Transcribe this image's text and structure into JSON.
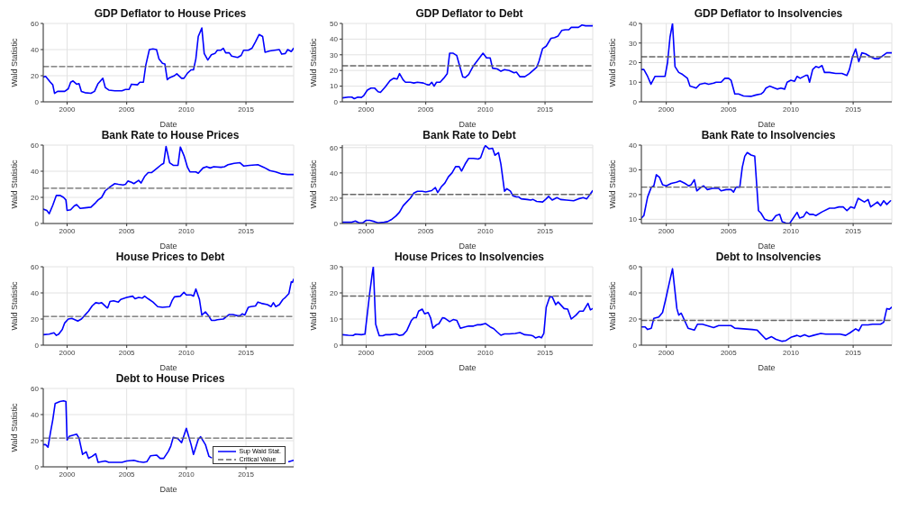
{
  "chart_data": [
    {
      "type": "line",
      "title": "GDP Deflator to House Prices",
      "xlabel": "Date",
      "ylabel": "Wald Statistic",
      "xlim": [
        1998,
        2019
      ],
      "xticks": [
        2000,
        2005,
        2010,
        2015
      ],
      "ylim": [
        0,
        60
      ],
      "yticks": [
        0,
        20,
        40,
        60
      ],
      "grid": true,
      "series": [
        {
          "color": "#0000ff",
          "x": [
            1998.0,
            1998.2,
            1998.6,
            1998.8,
            1998.95,
            1999.2,
            1999.6,
            1999.8,
            2000.1,
            2000.3,
            2000.5,
            2000.8,
            2001.0,
            2001.2,
            2001.5,
            2002.0,
            2002.3,
            2002.6,
            2003.0,
            2003.2,
            2003.5,
            2004.0,
            2004.6,
            2004.9,
            2005.2,
            2005.4,
            2005.9,
            2006.1,
            2006.4,
            2006.6,
            2006.9,
            2007.2,
            2007.5,
            2007.7,
            2008.0,
            2008.2,
            2008.4,
            2008.6,
            2009.0,
            2009.2,
            2009.6,
            2009.8,
            2010.1,
            2010.4,
            2010.6,
            2010.8,
            2011.0,
            2011.3,
            2011.5,
            2011.8,
            2012.1,
            2012.4,
            2012.6,
            2012.9,
            2013.1,
            2013.3,
            2013.6,
            2013.8,
            2014.3,
            2014.6,
            2014.8,
            2015.2,
            2015.5,
            2015.8,
            2016.1,
            2016.4,
            2016.6,
            2017.0,
            2017.4,
            2017.8,
            2018.0,
            2018.3,
            2018.5,
            2018.8,
            2019.0
          ],
          "values": [
            19,
            19.5,
            15,
            13,
            6.5,
            8,
            8,
            8,
            10,
            15,
            16,
            13.5,
            14,
            8,
            7,
            6.5,
            8,
            14,
            18,
            11,
            9,
            8.5,
            8.5,
            9.5,
            9.5,
            13.5,
            13,
            15,
            15,
            28,
            40,
            40.5,
            40,
            33,
            29.5,
            29,
            17,
            18.5,
            20,
            21.5,
            18,
            18,
            22,
            24.5,
            24.5,
            33,
            50,
            56.5,
            37,
            32,
            36,
            37,
            39.5,
            39.5,
            41,
            37.5,
            37.5,
            35,
            34,
            35.5,
            39.5,
            39.5,
            41,
            46,
            51.5,
            50,
            38,
            39,
            39.5,
            40,
            36.5,
            37,
            40,
            38.5,
            41
          ]
        },
        {
          "color": "#666666",
          "line_style": "dashed",
          "x": [
            1998,
            2019
          ],
          "values": [
            27,
            27
          ]
        }
      ]
    },
    {
      "type": "line",
      "title": "GDP Deflator to Debt",
      "xlabel": "Date",
      "ylabel": "Wald Statistic",
      "xlim": [
        1998,
        2019
      ],
      "xticks": [
        2000,
        2005,
        2010,
        2015
      ],
      "ylim": [
        0,
        50
      ],
      "yticks": [
        0,
        10,
        20,
        30,
        40,
        50
      ],
      "grid": true,
      "series": [
        {
          "color": "#0000ff",
          "x": [
            1998.0,
            1998.5,
            1998.8,
            1999.0,
            1999.3,
            1999.6,
            1999.8,
            2000.1,
            2000.4,
            2000.7,
            2001.0,
            2001.2,
            2001.6,
            2002.0,
            2002.3,
            2002.6,
            2002.8,
            2003.1,
            2003.3,
            2003.7,
            2004.0,
            2004.3,
            2004.8,
            2005.1,
            2005.3,
            2005.5,
            2005.7,
            2005.9,
            2006.2,
            2006.5,
            2006.8,
            2007.0,
            2007.3,
            2007.6,
            2007.8,
            2008.1,
            2008.3,
            2008.6,
            2009.0,
            2009.4,
            2009.8,
            2010.1,
            2010.4,
            2010.6,
            2011.0,
            2011.3,
            2011.6,
            2012.0,
            2012.4,
            2012.6,
            2012.9,
            2013.3,
            2013.7,
            2014.0,
            2014.3,
            2014.5,
            2014.8,
            2015.1,
            2015.5,
            2015.8,
            2016.1,
            2016.4,
            2016.7,
            2017.0,
            2017.2,
            2017.8,
            2018.1,
            2018.4,
            2019.0
          ],
          "values": [
            2.5,
            3,
            3,
            2,
            3,
            2.8,
            4,
            7.5,
            8.8,
            8.8,
            6.5,
            6,
            9.5,
            13.5,
            15,
            14.5,
            18,
            14,
            12.5,
            12.5,
            12,
            12.5,
            12,
            11,
            10.8,
            12.5,
            10,
            12.5,
            12.5,
            15,
            18,
            31,
            31,
            29.5,
            24,
            16,
            15.5,
            17.5,
            23,
            27,
            31,
            28,
            28,
            21.5,
            21,
            19.5,
            20.5,
            20,
            18.5,
            19,
            16,
            16,
            18,
            20,
            22,
            26,
            34,
            35.5,
            40.5,
            41,
            42,
            45.5,
            46,
            46,
            47.5,
            47.5,
            49,
            48.5,
            48.5
          ]
        },
        {
          "color": "#666666",
          "line_style": "dashed",
          "x": [
            1998,
            2019
          ],
          "values": [
            23,
            23
          ]
        }
      ]
    },
    {
      "type": "line",
      "title": "GDP Deflator to Insolvencies",
      "xlabel": "Date",
      "ylabel": "Wald Statistic",
      "xlim": [
        1998,
        2018.1
      ],
      "xticks": [
        2000,
        2005,
        2010,
        2015
      ],
      "ylim": [
        0,
        40
      ],
      "yticks": [
        0,
        10,
        20,
        30,
        40
      ],
      "grid": true,
      "series": [
        {
          "color": "#0000ff",
          "x": [
            1998.0,
            1998.2,
            1998.5,
            1998.77,
            1999.1,
            1999.5,
            1999.9,
            2000.1,
            2000.3,
            2000.5,
            2000.7,
            2001.0,
            2001.3,
            2001.7,
            2001.9,
            2002.2,
            2002.4,
            2002.7,
            2003.1,
            2003.4,
            2003.8,
            2004.0,
            2004.4,
            2004.7,
            2005.0,
            2005.2,
            2005.5,
            2005.8,
            2006.2,
            2006.8,
            2007.2,
            2007.6,
            2007.8,
            2008.0,
            2008.3,
            2008.7,
            2008.9,
            2009.2,
            2009.5,
            2009.7,
            2010.0,
            2010.3,
            2010.5,
            2010.75,
            2011.2,
            2011.35,
            2011.5,
            2011.75,
            2012.0,
            2012.25,
            2012.5,
            2012.7,
            2013.1,
            2013.6,
            2014.1,
            2014.5,
            2014.7,
            2014.95,
            2015.2,
            2015.45,
            2015.7,
            2016.0,
            2016.4,
            2016.75,
            2017.05,
            2017.7,
            2018.1
          ],
          "values": [
            16.5,
            16.5,
            13,
            9,
            13,
            13,
            13,
            20,
            33,
            40,
            18,
            15,
            14,
            12,
            8,
            7.5,
            7,
            9,
            9.5,
            9,
            9.5,
            10,
            10,
            12,
            12,
            11,
            4,
            4,
            3,
            2.8,
            3.5,
            4,
            5,
            7,
            8,
            7,
            6.5,
            7,
            6.5,
            10,
            11,
            10.5,
            13,
            12,
            13.5,
            13.5,
            10,
            16.5,
            18,
            17.5,
            18.5,
            15,
            15,
            14.5,
            14.5,
            13.5,
            16.5,
            23,
            27,
            20.5,
            25,
            24.5,
            23,
            22,
            22,
            25,
            25
          ]
        },
        {
          "color": "#666666",
          "line_style": "dashed",
          "x": [
            1998,
            2018.1
          ],
          "values": [
            23,
            23
          ]
        }
      ]
    },
    {
      "type": "line",
      "title": "Bank Rate to House Prices",
      "xlabel": "Date",
      "ylabel": "Wald Statistic",
      "xlim": [
        1998,
        2019
      ],
      "xticks": [
        2000,
        2005,
        2010,
        2015
      ],
      "ylim": [
        0,
        60
      ],
      "yticks": [
        0,
        20,
        40,
        60
      ],
      "grid": true,
      "series": [
        {
          "color": "#0000ff",
          "x": [
            1998.0,
            1998.3,
            1998.5,
            1998.8,
            1999.1,
            1999.4,
            1999.7,
            1999.9,
            2000.0,
            2000.3,
            2000.6,
            2000.8,
            2001.1,
            2001.5,
            2002.0,
            2002.4,
            2002.6,
            2002.9,
            2003.2,
            2003.6,
            2004.0,
            2004.3,
            2004.7,
            2004.9,
            2005.1,
            2005.4,
            2005.6,
            2006.0,
            2006.2,
            2006.5,
            2006.8,
            2007.1,
            2007.5,
            2007.9,
            2008.1,
            2008.3,
            2008.6,
            2008.9,
            2009.3,
            2009.5,
            2009.8,
            2010.1,
            2010.3,
            2010.8,
            2011.0,
            2011.4,
            2011.7,
            2012.0,
            2012.3,
            2012.9,
            2013.2,
            2013.5,
            2014.0,
            2014.5,
            2014.8,
            2015.3,
            2016.0,
            2016.5,
            2017.0,
            2017.5,
            2018.0,
            2018.5,
            2019.0
          ],
          "values": [
            11,
            10,
            7.5,
            14,
            21.5,
            21.5,
            20,
            18,
            10,
            10.5,
            13.5,
            14.5,
            11.5,
            12,
            12.5,
            16,
            18,
            20,
            25,
            28,
            30.5,
            30,
            29.5,
            30,
            32.5,
            31.5,
            30.5,
            33,
            31,
            36,
            39,
            39,
            42,
            45,
            46,
            59,
            46.5,
            44.5,
            44.5,
            58.5,
            52,
            43,
            39.5,
            39.5,
            38.5,
            42.5,
            43.5,
            42.5,
            43.5,
            43,
            43.5,
            45,
            46,
            46.5,
            44,
            44.5,
            45,
            43,
            40.5,
            39.5,
            38,
            37.5,
            37.5
          ]
        },
        {
          "color": "#666666",
          "line_style": "dashed",
          "x": [
            1998,
            2019
          ],
          "values": [
            27,
            27
          ]
        }
      ]
    },
    {
      "type": "line",
      "title": "Bank Rate to Debt",
      "xlabel": "Date",
      "ylabel": "Wald Statistic",
      "xlim": [
        1998,
        2019
      ],
      "xticks": [
        2000,
        2005,
        2010,
        2015
      ],
      "ylim": [
        0,
        62
      ],
      "yticks": [
        0,
        20,
        40,
        60
      ],
      "grid": true,
      "series": [
        {
          "color": "#0000ff",
          "x": [
            1998.0,
            1998.8,
            1999.1,
            1999.4,
            1999.7,
            2000.0,
            2000.3,
            2000.7,
            2001.0,
            2001.5,
            2001.8,
            2002.1,
            2002.5,
            2002.8,
            2003.1,
            2003.4,
            2003.7,
            2004.0,
            2004.3,
            2004.7,
            2005.0,
            2005.5,
            2005.8,
            2006.0,
            2006.3,
            2006.6,
            2006.9,
            2007.2,
            2007.5,
            2007.8,
            2008.0,
            2008.3,
            2008.6,
            2009.0,
            2009.4,
            2009.6,
            2009.9,
            2010.0,
            2010.3,
            2010.6,
            2010.8,
            2011.1,
            2011.3,
            2011.6,
            2011.8,
            2012.1,
            2012.3,
            2012.6,
            2012.8,
            2013.0,
            2013.5,
            2013.8,
            2014.0,
            2014.3,
            2014.8,
            2015.1,
            2015.3,
            2015.6,
            2016.0,
            2016.3,
            2016.8,
            2017.4,
            2017.8,
            2018.2,
            2018.5,
            2019.0
          ],
          "values": [
            1,
            1,
            2,
            0.5,
            0.5,
            2.5,
            2.5,
            1.5,
            0.5,
            1,
            1.5,
            3,
            6,
            9,
            14,
            17,
            20,
            24,
            25.5,
            25.5,
            25,
            26,
            28.5,
            24.5,
            29,
            32,
            37,
            40,
            45,
            45,
            41.5,
            47,
            51.5,
            51.5,
            51,
            52,
            60,
            61.5,
            59,
            59.5,
            54,
            56,
            47,
            25.5,
            27.5,
            25.5,
            22,
            21,
            21,
            19.5,
            19,
            18.5,
            19,
            17.5,
            17,
            19.5,
            21.5,
            18.5,
            20.5,
            19,
            18.5,
            18,
            19.5,
            20.5,
            19.5,
            26
          ]
        },
        {
          "color": "#666666",
          "line_style": "dashed",
          "x": [
            1998,
            2019
          ],
          "values": [
            23,
            23
          ]
        }
      ]
    },
    {
      "type": "line",
      "title": "Bank Rate to Insolvencies",
      "xlabel": "Date",
      "ylabel": "Wald Statistic",
      "xlim": [
        1998,
        2018.1
      ],
      "xticks": [
        2000,
        2005,
        2010,
        2015
      ],
      "ylim": [
        8.3,
        40
      ],
      "yticks": [
        10,
        20,
        30,
        40
      ],
      "grid": true,
      "series": [
        {
          "color": "#0000ff",
          "x": [
            1998.0,
            1998.2,
            1998.5,
            1998.8,
            1999.0,
            1999.2,
            1999.45,
            1999.7,
            2000.0,
            2000.4,
            2000.8,
            2001.1,
            2001.5,
            2001.8,
            2002.0,
            2002.25,
            2002.45,
            2002.8,
            2003.0,
            2003.3,
            2003.7,
            2004.2,
            2004.4,
            2004.8,
            2005.2,
            2005.4,
            2005.6,
            2005.9,
            2006.1,
            2006.3,
            2006.5,
            2006.8,
            2007.1,
            2007.4,
            2007.6,
            2007.9,
            2008.2,
            2008.5,
            2008.8,
            2009.1,
            2009.3,
            2009.6,
            2009.9,
            2010.5,
            2010.7,
            2011.0,
            2011.25,
            2011.5,
            2011.8,
            2012.0,
            2012.5,
            2013.1,
            2013.5,
            2013.85,
            2014.2,
            2014.5,
            2014.8,
            2015.1,
            2015.4,
            2015.9,
            2016.2,
            2016.4,
            2016.95,
            2017.2,
            2017.45,
            2017.7,
            2018.0
          ],
          "values": [
            10.5,
            11.5,
            19,
            23,
            23.5,
            28,
            27,
            24,
            23.5,
            24.5,
            25,
            25.5,
            24.5,
            23.5,
            24,
            26,
            21.5,
            23,
            23.5,
            22,
            22.5,
            22.5,
            21.5,
            22,
            22,
            21,
            23,
            23,
            31,
            35.5,
            37,
            36,
            35.5,
            13.5,
            12.5,
            10,
            9.5,
            9.5,
            11.5,
            12,
            9,
            8.5,
            8.3,
            12.8,
            10.5,
            11,
            13,
            12,
            12,
            11.5,
            13,
            14.5,
            14.5,
            15,
            15,
            13.5,
            15,
            14.5,
            18.5,
            17,
            18,
            15,
            17,
            15.5,
            17.5,
            16,
            17.5
          ]
        },
        {
          "color": "#666666",
          "line_style": "dashed",
          "x": [
            1998,
            2018.1
          ],
          "values": [
            23,
            23
          ]
        }
      ]
    },
    {
      "type": "line",
      "title": "House Prices to Debt",
      "xlabel": "Date",
      "ylabel": "Wald Statistic",
      "xlim": [
        1998,
        2019
      ],
      "xticks": [
        2000,
        2005,
        2010,
        2015
      ],
      "ylim": [
        0,
        60
      ],
      "yticks": [
        0,
        20,
        40,
        60
      ],
      "grid": true,
      "series": [
        {
          "color": "#0000ff",
          "x": [
            1998.0,
            1998.5,
            1998.9,
            1999.1,
            1999.3,
            1999.6,
            1999.8,
            2000.1,
            2000.4,
            2000.9,
            2001.2,
            2001.5,
            2001.8,
            2002.1,
            2002.4,
            2002.7,
            2002.9,
            2003.3,
            2003.4,
            2003.6,
            2003.9,
            2004.3,
            2004.5,
            2005.0,
            2005.5,
            2005.7,
            2006.0,
            2006.3,
            2006.5,
            2006.8,
            2007.2,
            2007.6,
            2008.0,
            2008.6,
            2008.8,
            2009.0,
            2009.5,
            2009.8,
            2010.0,
            2010.4,
            2010.6,
            2010.8,
            2011.1,
            2011.3,
            2011.6,
            2011.9,
            2012.1,
            2012.4,
            2012.6,
            2013.1,
            2013.6,
            2013.9,
            2014.3,
            2014.5,
            2014.7,
            2014.9,
            2015.2,
            2015.4,
            2015.8,
            2016.0,
            2016.3,
            2016.8,
            2017.1,
            2017.3,
            2017.5,
            2017.8,
            2018.1,
            2018.3,
            2018.6,
            2018.8,
            2018.9,
            2019.0
          ],
          "values": [
            8,
            8.5,
            9.5,
            7.5,
            8.5,
            12,
            17,
            20,
            20.5,
            18.5,
            20,
            23,
            26,
            30,
            32.5,
            32,
            32.5,
            29,
            28.5,
            33.5,
            34,
            33,
            35,
            36.5,
            37.5,
            35.5,
            36.5,
            36,
            37.5,
            35.5,
            33,
            29.5,
            29,
            29.5,
            34,
            37,
            37.5,
            40.5,
            38.5,
            38.5,
            37.5,
            43,
            35,
            23,
            25.5,
            22,
            19,
            19,
            19.5,
            20,
            23.5,
            23.5,
            22.5,
            22.5,
            24,
            23,
            29,
            29.5,
            30,
            33,
            32,
            31,
            29.5,
            32.5,
            29.5,
            31,
            35,
            36.5,
            39.5,
            48.5,
            48,
            50.5
          ]
        },
        {
          "color": "#666666",
          "line_style": "dashed",
          "x": [
            1998,
            2019
          ],
          "values": [
            22,
            22
          ]
        }
      ]
    },
    {
      "type": "line",
      "title": "House Prices to Insolvencies",
      "xlabel": "Date",
      "ylabel": "Wald Statistic",
      "xlim": [
        1998,
        2019
      ],
      "xticks": [
        2000,
        2005,
        2010,
        2015
      ],
      "ylim": [
        0,
        30
      ],
      "yticks": [
        0,
        10,
        20,
        30
      ],
      "grid": true,
      "series": [
        {
          "color": "#0000ff",
          "x": [
            1998.0,
            1998.5,
            1998.9,
            1999.1,
            1999.6,
            1999.9,
            2000.1,
            2000.3,
            2000.5,
            2000.6,
            2000.8,
            2001.0,
            2001.1,
            2001.4,
            2001.6,
            2002.0,
            2002.5,
            2002.8,
            2003.1,
            2003.4,
            2003.8,
            2004.0,
            2004.2,
            2004.4,
            2004.7,
            2004.9,
            2005.2,
            2005.4,
            2005.6,
            2005.9,
            2006.1,
            2006.4,
            2006.6,
            2007.0,
            2007.3,
            2007.6,
            2007.9,
            2008.3,
            2008.6,
            2009.0,
            2009.3,
            2009.6,
            2010.0,
            2010.4,
            2010.7,
            2011.0,
            2011.3,
            2011.6,
            2012.0,
            2012.5,
            2012.9,
            2013.3,
            2013.8,
            2014.0,
            2014.2,
            2014.5,
            2014.7,
            2014.9,
            2015.1,
            2015.4,
            2015.6,
            2015.9,
            2016.1,
            2016.6,
            2016.9,
            2017.2,
            2017.6,
            2017.9,
            2018.2,
            2018.6,
            2018.8,
            2019.0
          ],
          "values": [
            4,
            3.8,
            3.7,
            4.2,
            4,
            4.2,
            12,
            20,
            27,
            30,
            8,
            5,
            3.6,
            3.6,
            4,
            4,
            4.3,
            3.7,
            4,
            5.5,
            9.5,
            10.5,
            10.5,
            13,
            13.8,
            12,
            12.5,
            10.5,
            6.5,
            7.8,
            8.2,
            10.5,
            10.3,
            9,
            9.8,
            9.5,
            6.5,
            7,
            7.3,
            7.3,
            7.8,
            7.8,
            8.3,
            7,
            6.3,
            5,
            3.8,
            4.3,
            4.3,
            4.5,
            4.8,
            4,
            3.8,
            3.5,
            2.8,
            3.3,
            2.8,
            4.5,
            14.5,
            18.5,
            18.5,
            15.5,
            16.5,
            14,
            13.8,
            10,
            11.5,
            13,
            13,
            16,
            13.5,
            14
          ]
        },
        {
          "color": "#666666",
          "line_style": "dashed",
          "x": [
            1998,
            2019
          ],
          "values": [
            18.8,
            18.8
          ]
        }
      ]
    },
    {
      "type": "line",
      "title": "Debt to Insolvencies",
      "xlabel": "Date",
      "ylabel": "Wald Statistic",
      "xlim": [
        1998,
        2018.1
      ],
      "xticks": [
        2000,
        2005,
        2010,
        2015
      ],
      "ylim": [
        0,
        60
      ],
      "yticks": [
        0,
        20,
        40,
        60
      ],
      "grid": true,
      "series": [
        {
          "color": "#0000ff",
          "x": [
            1998.0,
            1998.3,
            1998.5,
            1998.8,
            1999.0,
            1999.4,
            1999.7,
            1999.95,
            2000.25,
            2000.5,
            2000.85,
            2001.0,
            2001.2,
            2001.75,
            2002.25,
            2002.5,
            2002.9,
            2003.8,
            2004.2,
            2005.2,
            2005.5,
            2006.9,
            2007.3,
            2008.0,
            2008.45,
            2008.8,
            2009.3,
            2009.6,
            2010.0,
            2010.5,
            2010.75,
            2011.1,
            2011.45,
            2011.8,
            2012.4,
            2012.8,
            2013.95,
            2014.4,
            2014.75,
            2015.2,
            2015.45,
            2015.7,
            2016.2,
            2016.55,
            2017.2,
            2017.45,
            2017.7,
            2017.9,
            2018.1
          ],
          "values": [
            14,
            14,
            12,
            13,
            20.5,
            21.5,
            25,
            35,
            48,
            58.5,
            28,
            23,
            24.5,
            13,
            11.5,
            16,
            16,
            13.5,
            15,
            15,
            13,
            12,
            11.5,
            4.5,
            6.5,
            4.5,
            3,
            3.5,
            6,
            7.5,
            6.5,
            8,
            6.5,
            7.5,
            9,
            8.5,
            8.5,
            7.5,
            9.5,
            12.5,
            11,
            15.5,
            15.5,
            16,
            16,
            17.5,
            28,
            27.5,
            29
          ]
        },
        {
          "color": "#666666",
          "line_style": "dashed",
          "x": [
            1998,
            2018.1
          ],
          "values": [
            19,
            19
          ]
        }
      ]
    },
    {
      "type": "line",
      "title": "Debt to House Prices",
      "xlabel": "Date",
      "ylabel": "Wald Statistic",
      "xlim": [
        1998,
        2019
      ],
      "xticks": [
        2000,
        2005,
        2010,
        2015
      ],
      "ylim": [
        0,
        60
      ],
      "yticks": [
        0,
        20,
        40,
        60
      ],
      "grid": true,
      "legend": "bottom right",
      "series": [
        {
          "name": "Sup Wald Stat.",
          "color": "#0000ff",
          "x": [
            1998.0,
            1998.2,
            1998.4,
            1998.6,
            1998.8,
            1999.0,
            1999.4,
            1999.7,
            1999.9,
            2000.0,
            2000.2,
            2000.6,
            2000.8,
            2001.0,
            2001.3,
            2001.6,
            2001.8,
            2002.1,
            2002.4,
            2002.6,
            2002.9,
            2003.2,
            2003.5,
            2004.0,
            2004.6,
            2005.0,
            2005.6,
            2006.0,
            2006.4,
            2006.7,
            2007.0,
            2007.5,
            2007.8,
            2008.1,
            2008.5,
            2008.7,
            2008.9,
            2009.3,
            2009.6,
            2010.0,
            2010.4,
            2010.6,
            2011.0,
            2011.2,
            2011.6,
            2011.9,
            2012.1,
            2015.0,
            2018.6,
            2019.0
          ],
          "values": [
            17,
            17,
            15,
            26,
            36,
            48.5,
            50,
            50.5,
            50,
            20.5,
            23.5,
            24.5,
            25,
            22,
            9.5,
            11.5,
            6.5,
            8,
            10,
            3.5,
            4,
            4.5,
            3.5,
            3.5,
            3.5,
            4.5,
            5,
            4,
            3.5,
            4,
            8.5,
            9,
            6.5,
            6.5,
            12,
            16,
            22.5,
            21.5,
            18.5,
            29.5,
            17,
            9.5,
            21,
            23,
            17,
            8,
            7,
            null,
            4,
            5
          ]
        },
        {
          "name": "Critical Value",
          "color": "#666666",
          "line_style": "dashed",
          "x": [
            1998,
            2019
          ],
          "values": [
            22,
            22
          ]
        }
      ]
    }
  ]
}
